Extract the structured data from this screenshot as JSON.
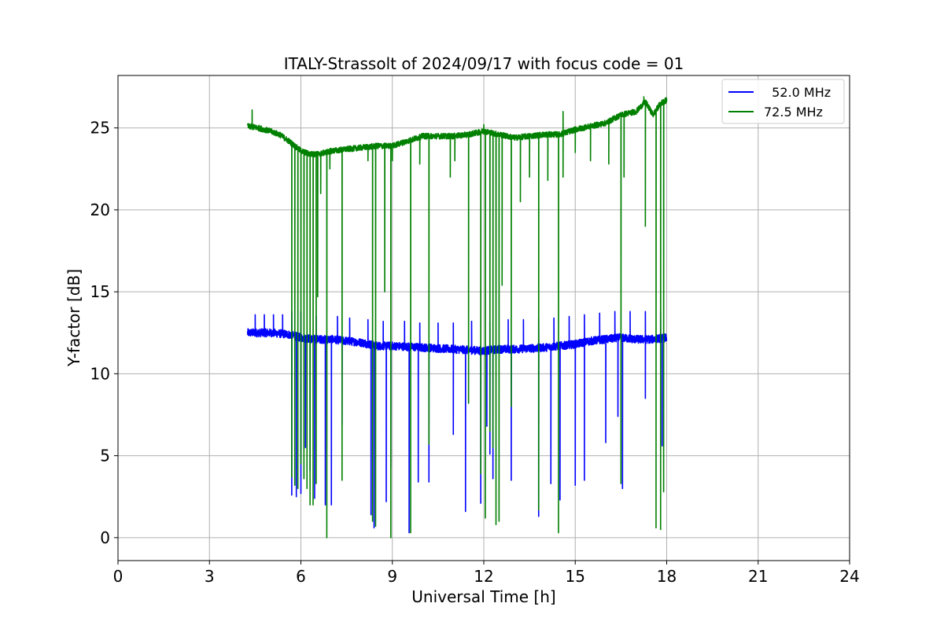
{
  "chart_data": {
    "type": "line",
    "title": "ITALY-Strassolt of 2024/09/17 with focus code = 01",
    "xlabel": "Universal Time [h]",
    "ylabel": "Y-factor [dB]",
    "xlim": [
      0,
      24
    ],
    "ylim": [
      -1.4,
      28.2
    ],
    "xticks": [
      0,
      3,
      6,
      9,
      12,
      15,
      18,
      21,
      24
    ],
    "yticks": [
      0,
      5,
      10,
      15,
      20,
      25
    ],
    "grid": true,
    "legend_position": "top-right",
    "x_start": 4.25,
    "x_end": 18.0,
    "series": [
      {
        "name": "  52.0 MHz",
        "color": "#0000ff",
        "baseline": [
          [
            4.25,
            12.5
          ],
          [
            5.0,
            12.5
          ],
          [
            5.6,
            12.4
          ],
          [
            6.0,
            12.2
          ],
          [
            6.5,
            12.1
          ],
          [
            7.0,
            12.1
          ],
          [
            7.5,
            12.0
          ],
          [
            8.0,
            11.9
          ],
          [
            8.5,
            11.7
          ],
          [
            9.0,
            11.7
          ],
          [
            10.0,
            11.6
          ],
          [
            11.0,
            11.5
          ],
          [
            12.0,
            11.4
          ],
          [
            12.5,
            11.5
          ],
          [
            13.0,
            11.5
          ],
          [
            14.0,
            11.6
          ],
          [
            15.0,
            11.8
          ],
          [
            15.5,
            12.0
          ],
          [
            16.0,
            12.1
          ],
          [
            16.5,
            12.2
          ],
          [
            17.0,
            12.1
          ],
          [
            17.5,
            12.1
          ],
          [
            18.0,
            12.2
          ]
        ],
        "spikes_up": [
          [
            4.5,
            13.6
          ],
          [
            4.8,
            13.6
          ],
          [
            5.1,
            13.6
          ],
          [
            5.4,
            13.6
          ],
          [
            5.7,
            13.8
          ],
          [
            6.0,
            13.8
          ],
          [
            6.5,
            13.5
          ],
          [
            7.2,
            13.5
          ],
          [
            7.6,
            13.4
          ],
          [
            8.2,
            13.3
          ],
          [
            8.7,
            13.2
          ],
          [
            9.4,
            13.2
          ],
          [
            9.9,
            13.1
          ],
          [
            10.5,
            13.1
          ],
          [
            11.0,
            13.1
          ],
          [
            11.6,
            13.2
          ],
          [
            12.2,
            13.2
          ],
          [
            12.8,
            13.3
          ],
          [
            13.3,
            13.3
          ],
          [
            13.8,
            13.4
          ],
          [
            14.3,
            13.4
          ],
          [
            14.8,
            13.5
          ],
          [
            15.3,
            13.6
          ],
          [
            15.8,
            13.7
          ],
          [
            16.3,
            13.8
          ],
          [
            16.8,
            13.8
          ],
          [
            17.3,
            13.8
          ],
          [
            17.8,
            13.8
          ]
        ],
        "spikes_down": [
          [
            5.7,
            2.6
          ],
          [
            5.85,
            2.5
          ],
          [
            6.0,
            2.7
          ],
          [
            6.15,
            5.5
          ],
          [
            6.3,
            4.1
          ],
          [
            6.45,
            2.4
          ],
          [
            6.8,
            2.0
          ],
          [
            7.0,
            2.0
          ],
          [
            7.35,
            6.9
          ],
          [
            8.3,
            1.4
          ],
          [
            8.4,
            0.6
          ],
          [
            8.8,
            2.2
          ],
          [
            8.95,
            4.3
          ],
          [
            9.55,
            0.3
          ],
          [
            9.85,
            3.4
          ],
          [
            10.2,
            3.4
          ],
          [
            11.0,
            6.3
          ],
          [
            11.4,
            1.6
          ],
          [
            11.9,
            2.1
          ],
          [
            12.1,
            6.8
          ],
          [
            12.2,
            5.1
          ],
          [
            12.3,
            3.6
          ],
          [
            12.9,
            3.5
          ],
          [
            13.8,
            1.3
          ],
          [
            14.2,
            3.3
          ],
          [
            14.5,
            2.3
          ],
          [
            15.0,
            3.2
          ],
          [
            15.3,
            3.5
          ],
          [
            16.0,
            5.8
          ],
          [
            16.4,
            7.4
          ],
          [
            16.55,
            3.0
          ],
          [
            17.3,
            8.5
          ],
          [
            17.85,
            5.6
          ]
        ]
      },
      {
        "name": "72.5 MHz",
        "color": "#008000",
        "baseline": [
          [
            4.25,
            25.1
          ],
          [
            4.6,
            25.0
          ],
          [
            5.0,
            24.8
          ],
          [
            5.3,
            24.6
          ],
          [
            5.6,
            24.2
          ],
          [
            5.8,
            23.9
          ],
          [
            6.0,
            23.6
          ],
          [
            6.3,
            23.4
          ],
          [
            6.6,
            23.4
          ],
          [
            7.0,
            23.6
          ],
          [
            7.5,
            23.7
          ],
          [
            8.0,
            23.8
          ],
          [
            8.5,
            23.9
          ],
          [
            9.0,
            23.9
          ],
          [
            9.5,
            24.2
          ],
          [
            10.0,
            24.5
          ],
          [
            10.5,
            24.5
          ],
          [
            11.0,
            24.5
          ],
          [
            11.5,
            24.6
          ],
          [
            12.0,
            24.8
          ],
          [
            12.5,
            24.6
          ],
          [
            13.0,
            24.4
          ],
          [
            13.5,
            24.5
          ],
          [
            14.0,
            24.6
          ],
          [
            14.5,
            24.6
          ],
          [
            15.0,
            24.9
          ],
          [
            15.5,
            25.1
          ],
          [
            16.0,
            25.3
          ],
          [
            16.5,
            25.8
          ],
          [
            17.0,
            26.0
          ],
          [
            17.3,
            26.6
          ],
          [
            17.55,
            25.8
          ],
          [
            17.8,
            26.5
          ],
          [
            18.0,
            26.7
          ]
        ],
        "spikes_up": [
          [
            4.4,
            26.1
          ],
          [
            12.0,
            25.2
          ],
          [
            14.6,
            26.0
          ],
          [
            17.25,
            26.9
          ]
        ],
        "spikes_down": [
          [
            5.7,
            3.7
          ],
          [
            5.8,
            3.2
          ],
          [
            5.9,
            3.0
          ],
          [
            6.0,
            4.5
          ],
          [
            6.1,
            3.6
          ],
          [
            6.2,
            3.0
          ],
          [
            6.3,
            2.0
          ],
          [
            6.4,
            2.0
          ],
          [
            6.5,
            3.3
          ],
          [
            6.55,
            14.7
          ],
          [
            6.65,
            21.0
          ],
          [
            6.85,
            0.0
          ],
          [
            6.95,
            22.5
          ],
          [
            7.35,
            3.5
          ],
          [
            8.2,
            23.0
          ],
          [
            8.35,
            1.0
          ],
          [
            8.45,
            0.7
          ],
          [
            8.75,
            15.0
          ],
          [
            8.95,
            0.0
          ],
          [
            9.0,
            23.0
          ],
          [
            9.6,
            0.3
          ],
          [
            9.9,
            22.8
          ],
          [
            10.2,
            5.7
          ],
          [
            10.9,
            22.0
          ],
          [
            11.05,
            23.0
          ],
          [
            11.5,
            8.2
          ],
          [
            11.9,
            3.9
          ],
          [
            12.05,
            1.2
          ],
          [
            12.2,
            6.5
          ],
          [
            12.3,
            5.5
          ],
          [
            12.4,
            0.8
          ],
          [
            12.5,
            1.0
          ],
          [
            12.6,
            15.4
          ],
          [
            12.9,
            8.0
          ],
          [
            13.2,
            20.5
          ],
          [
            13.5,
            22.0
          ],
          [
            13.8,
            1.7
          ],
          [
            14.1,
            21.8
          ],
          [
            14.45,
            0.3
          ],
          [
            14.6,
            22.0
          ],
          [
            15.0,
            23.5
          ],
          [
            15.5,
            23.0
          ],
          [
            16.1,
            22.8
          ],
          [
            16.5,
            3.3
          ],
          [
            16.6,
            22.0
          ],
          [
            17.3,
            19.0
          ],
          [
            17.65,
            0.6
          ],
          [
            17.8,
            0.5
          ],
          [
            17.9,
            2.8
          ]
        ]
      }
    ]
  }
}
